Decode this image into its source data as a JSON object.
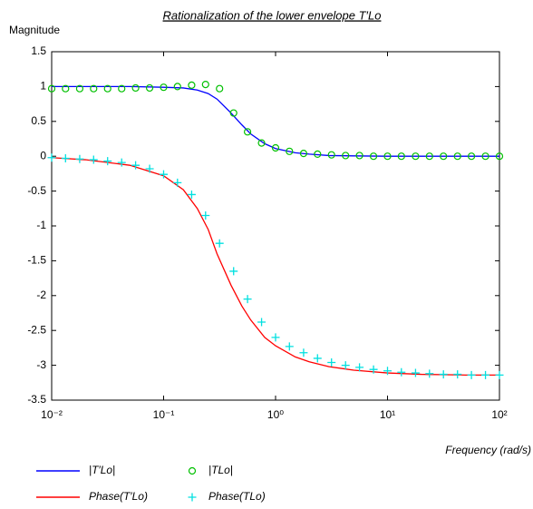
{
  "chart_data": {
    "type": "line",
    "title": "Rationalization of the lower envelope T′Lo",
    "y_label": "Magnitude",
    "x_label": "Frequency (rad/s)",
    "x_scale": "log",
    "xlim": [
      0.01,
      100
    ],
    "xticks": [
      {
        "value": 0.01,
        "label": "10⁻²"
      },
      {
        "value": 0.1,
        "label": "10⁻¹"
      },
      {
        "value": 1,
        "label": "10⁰"
      },
      {
        "value": 10,
        "label": "10¹"
      },
      {
        "value": 100,
        "label": "10²"
      }
    ],
    "ylim": [
      -3.5,
      1.5
    ],
    "yticks": [
      1.5,
      1,
      0.5,
      0,
      -0.5,
      -1,
      -1.5,
      -2,
      -2.5,
      -3,
      -3.5
    ],
    "grid": false,
    "legend": "bottom",
    "series": [
      {
        "name": "|T′Lo|",
        "color": "#0000ff",
        "marker": "line",
        "x": [
          0.01,
          0.02,
          0.05,
          0.1,
          0.15,
          0.2,
          0.25,
          0.3,
          0.4,
          0.5,
          0.6,
          0.8,
          1,
          1.5,
          2,
          3,
          5,
          10,
          20,
          50,
          100
        ],
        "values": [
          1.0,
          1.0,
          1.0,
          0.99,
          0.98,
          0.95,
          0.9,
          0.82,
          0.62,
          0.45,
          0.32,
          0.18,
          0.11,
          0.05,
          0.03,
          0.01,
          0.005,
          0,
          0,
          0,
          0
        ]
      },
      {
        "name": "|TLo|",
        "color": "#00c000",
        "marker": "circle",
        "x": [
          0.01,
          0.0133,
          0.0178,
          0.0237,
          0.0316,
          0.0422,
          0.0562,
          0.075,
          0.1,
          0.133,
          0.178,
          0.237,
          0.316,
          0.422,
          0.562,
          0.75,
          1,
          1.33,
          1.78,
          2.37,
          3.16,
          4.22,
          5.62,
          7.5,
          10,
          13.3,
          17.8,
          23.7,
          31.6,
          42.2,
          56.2,
          75,
          100
        ],
        "values": [
          0.97,
          0.97,
          0.97,
          0.97,
          0.97,
          0.97,
          0.98,
          0.98,
          0.99,
          1.0,
          1.02,
          1.03,
          0.97,
          0.62,
          0.35,
          0.19,
          0.12,
          0.07,
          0.04,
          0.03,
          0.02,
          0.01,
          0.01,
          0,
          0,
          0,
          0,
          0,
          0,
          0,
          0,
          0,
          0
        ]
      },
      {
        "name": "Phase(T′Lo)",
        "color": "#ff0000",
        "marker": "line",
        "x": [
          0.01,
          0.02,
          0.05,
          0.1,
          0.15,
          0.2,
          0.25,
          0.3,
          0.4,
          0.5,
          0.6,
          0.8,
          1,
          1.5,
          2,
          3,
          5,
          10,
          20,
          50,
          100
        ],
        "values": [
          -0.02,
          -0.05,
          -0.13,
          -0.28,
          -0.48,
          -0.75,
          -1.05,
          -1.4,
          -1.85,
          -2.15,
          -2.35,
          -2.6,
          -2.72,
          -2.88,
          -2.95,
          -3.02,
          -3.07,
          -3.11,
          -3.13,
          -3.14,
          -3.14
        ]
      },
      {
        "name": "Phase(TLo)",
        "color": "#00e0e0",
        "marker": "plus",
        "x": [
          0.01,
          0.0133,
          0.0178,
          0.0237,
          0.0316,
          0.0422,
          0.0562,
          0.075,
          0.1,
          0.133,
          0.178,
          0.237,
          0.316,
          0.422,
          0.562,
          0.75,
          1,
          1.33,
          1.78,
          2.37,
          3.16,
          4.22,
          5.62,
          7.5,
          10,
          13.3,
          17.8,
          23.7,
          31.6,
          42.2,
          56.2,
          75,
          100
        ],
        "values": [
          -0.02,
          -0.03,
          -0.04,
          -0.05,
          -0.07,
          -0.09,
          -0.13,
          -0.18,
          -0.26,
          -0.38,
          -0.55,
          -0.85,
          -1.25,
          -1.65,
          -2.05,
          -2.38,
          -2.6,
          -2.73,
          -2.82,
          -2.9,
          -2.96,
          -3.0,
          -3.03,
          -3.06,
          -3.08,
          -3.1,
          -3.11,
          -3.12,
          -3.13,
          -3.13,
          -3.14,
          -3.14,
          -3.14
        ]
      }
    ]
  }
}
